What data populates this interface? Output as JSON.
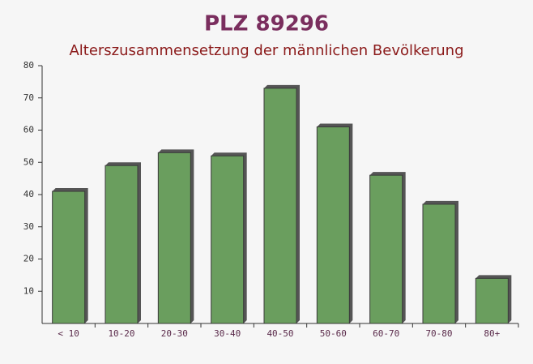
{
  "chart_data": {
    "type": "bar",
    "title": "PLZ 89296",
    "subtitle": "Alterszusammensetzung der männlichen Bevölkerung",
    "categories": [
      "< 10",
      "10-20",
      "20-30",
      "30-40",
      "40-50",
      "50-60",
      "60-70",
      "70-80",
      "80+"
    ],
    "values": [
      41,
      49,
      53,
      52,
      73,
      61,
      46,
      37,
      14
    ],
    "color": "#6a9e5e",
    "ylim": [
      0,
      80
    ],
    "yticks": [
      10,
      20,
      30,
      40,
      50,
      60,
      70,
      80
    ],
    "grid": false
  }
}
